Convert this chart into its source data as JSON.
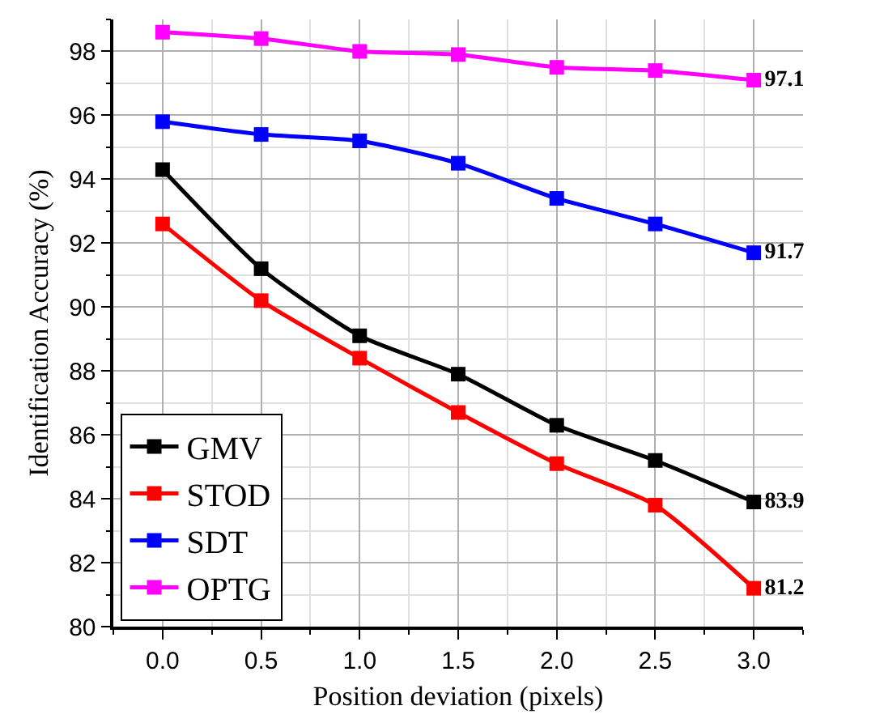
{
  "chart_data": {
    "type": "line",
    "xlabel": "Position deviation (pixels)",
    "ylabel": "Identification Accuracy (%)",
    "x": [
      0,
      0.5,
      1,
      1.5,
      2,
      2.5,
      3
    ],
    "series": [
      {
        "name": "GMV",
        "color": "#000000",
        "values": [
          94.3,
          91.2,
          89.1,
          87.9,
          86.3,
          85.2,
          83.9
        ],
        "value_labels": [
          null,
          null,
          null,
          null,
          null,
          null,
          "83.9"
        ]
      },
      {
        "name": "STOD",
        "color": "#ff0000",
        "values": [
          92.6,
          90.2,
          88.4,
          86.7,
          85.1,
          83.8,
          81.2
        ],
        "value_labels": [
          null,
          null,
          null,
          null,
          null,
          null,
          "81.2"
        ]
      },
      {
        "name": "SDT",
        "color": "#0000ff",
        "values": [
          95.8,
          95.4,
          95.2,
          94.5,
          93.4,
          92.6,
          91.7
        ],
        "value_labels": [
          null,
          null,
          null,
          null,
          null,
          null,
          "91.7"
        ]
      },
      {
        "name": "OPTG",
        "color": "#ff00ff",
        "values": [
          98.6,
          98.4,
          98.0,
          97.9,
          97.5,
          97.4,
          97.1
        ],
        "value_labels": [
          null,
          null,
          null,
          null,
          null,
          null,
          "97.1"
        ]
      }
    ],
    "xlim": [
      -0.25,
      3.25
    ],
    "xticks": [
      {
        "value": 0,
        "label": "0.0"
      },
      {
        "value": 0.5,
        "label": "0.5"
      },
      {
        "value": 1,
        "label": "1.0"
      },
      {
        "value": 1.5,
        "label": "1.5"
      },
      {
        "value": 2,
        "label": "2.0"
      },
      {
        "value": 2.5,
        "label": "2.5"
      },
      {
        "value": 3,
        "label": "3.0"
      }
    ],
    "ylim": [
      80,
      99
    ],
    "yticks": [
      80,
      82,
      84,
      86,
      88,
      90,
      92,
      94,
      96,
      98
    ],
    "grid": true,
    "legend": "bottom left",
    "marker": "square",
    "line_style": "solid"
  }
}
